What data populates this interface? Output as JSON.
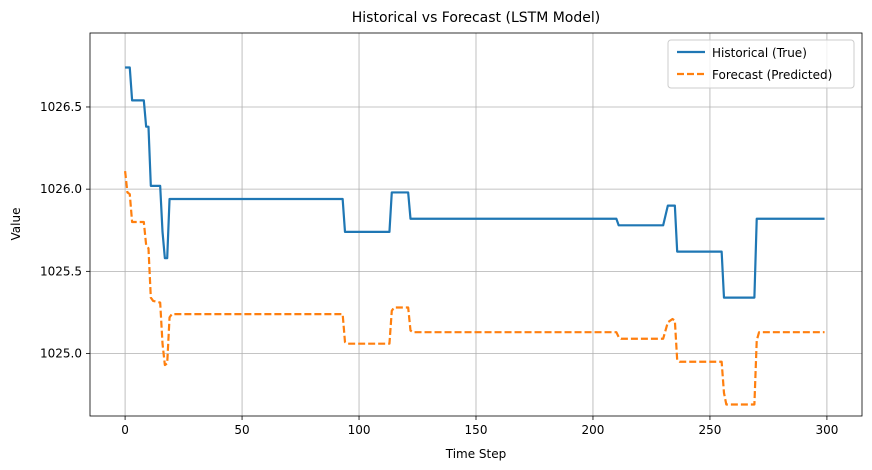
{
  "chart_data": {
    "type": "line",
    "title": "Historical vs Forecast (LSTM Model)",
    "xlabel": "Time Step",
    "ylabel": "Value",
    "xlim": [
      -15,
      315
    ],
    "ylim": [
      1024.62,
      1026.95
    ],
    "xticks": [
      0,
      50,
      100,
      150,
      200,
      250,
      300
    ],
    "yticks": [
      1025.0,
      1025.5,
      1026.0,
      1026.5
    ],
    "ytick_labels": [
      "1025.0",
      "1025.5",
      "1026.0",
      "1026.5"
    ],
    "grid": true,
    "legend_position": "top-right",
    "series": [
      {
        "name": "Historical (True)",
        "color": "#1f77b4",
        "style": "solid",
        "points": [
          [
            0,
            1026.74
          ],
          [
            2,
            1026.74
          ],
          [
            3,
            1026.54
          ],
          [
            8,
            1026.54
          ],
          [
            9,
            1026.38
          ],
          [
            10,
            1026.38
          ],
          [
            11,
            1026.02
          ],
          [
            15,
            1026.02
          ],
          [
            16,
            1025.74
          ],
          [
            17,
            1025.58
          ],
          [
            18,
            1025.58
          ],
          [
            19,
            1025.94
          ],
          [
            93,
            1025.94
          ],
          [
            94,
            1025.74
          ],
          [
            113,
            1025.74
          ],
          [
            114,
            1025.98
          ],
          [
            121,
            1025.98
          ],
          [
            122,
            1025.82
          ],
          [
            210,
            1025.82
          ],
          [
            211,
            1025.78
          ],
          [
            230,
            1025.78
          ],
          [
            232,
            1025.9
          ],
          [
            235,
            1025.9
          ],
          [
            236,
            1025.62
          ],
          [
            255,
            1025.62
          ],
          [
            256,
            1025.34
          ],
          [
            269,
            1025.34
          ],
          [
            270,
            1025.82
          ],
          [
            299,
            1025.82
          ]
        ]
      },
      {
        "name": "Forecast (Predicted)",
        "color": "#ff7f0e",
        "style": "dashed",
        "points": [
          [
            0,
            1026.11
          ],
          [
            1,
            1025.98
          ],
          [
            2,
            1025.97
          ],
          [
            3,
            1025.8
          ],
          [
            8,
            1025.8
          ],
          [
            9,
            1025.66
          ],
          [
            10,
            1025.64
          ],
          [
            11,
            1025.34
          ],
          [
            12,
            1025.32
          ],
          [
            15,
            1025.31
          ],
          [
            16,
            1025.06
          ],
          [
            17,
            1024.93
          ],
          [
            18,
            1024.94
          ],
          [
            19,
            1025.22
          ],
          [
            20,
            1025.24
          ],
          [
            93,
            1025.24
          ],
          [
            94,
            1025.07
          ],
          [
            95,
            1025.06
          ],
          [
            113,
            1025.06
          ],
          [
            114,
            1025.26
          ],
          [
            115,
            1025.28
          ],
          [
            121,
            1025.28
          ],
          [
            122,
            1025.14
          ],
          [
            123,
            1025.13
          ],
          [
            210,
            1025.13
          ],
          [
            211,
            1025.1
          ],
          [
            212,
            1025.09
          ],
          [
            230,
            1025.09
          ],
          [
            232,
            1025.19
          ],
          [
            234,
            1025.21
          ],
          [
            235,
            1025.2
          ],
          [
            236,
            1024.96
          ],
          [
            237,
            1024.95
          ],
          [
            255,
            1024.95
          ],
          [
            256,
            1024.76
          ],
          [
            257,
            1024.69
          ],
          [
            269,
            1024.69
          ],
          [
            270,
            1025.08
          ],
          [
            271,
            1025.13
          ],
          [
            299,
            1025.13
          ]
        ]
      }
    ]
  }
}
